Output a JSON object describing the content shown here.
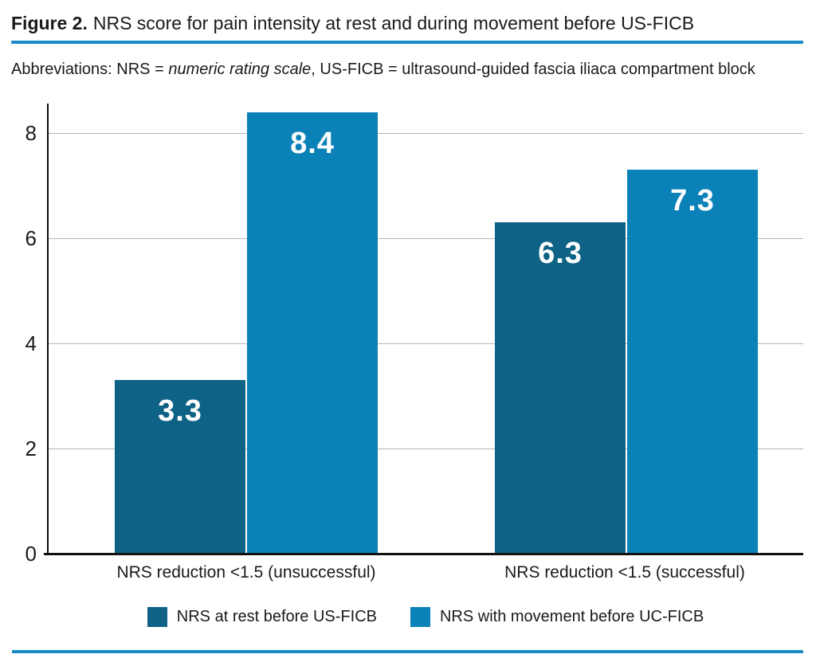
{
  "header": {
    "figure_label": "Figure 2.",
    "title_text": "NRS score for pain intensity at rest and during movement before US-FICB"
  },
  "abbreviations": {
    "prefix": "Abbreviations: NRS = ",
    "italic_term": "numeric rating scale",
    "suffix": ", US-FICB = ultrasound-guided fascia iliaca compartment block"
  },
  "chart_data": {
    "type": "bar",
    "title": "NRS score for pain intensity at rest and during movement before US-FICB",
    "categories": [
      "NRS reduction <1.5 (unsuccessful)",
      "NRS reduction <1.5 (successful)"
    ],
    "series": [
      {
        "name": "NRS at rest before US-FICB",
        "color": "#0e6285",
        "values": [
          3.3,
          6.3
        ]
      },
      {
        "name": "NRS with movement before UC-FICB",
        "color": "#0a82b8",
        "values": [
          8.4,
          7.3
        ]
      }
    ],
    "value_labels": [
      [
        "3.3",
        "6.3"
      ],
      [
        "8.4",
        "7.3"
      ]
    ],
    "xlabel": "",
    "ylabel": "",
    "yticks": [
      0,
      2,
      4,
      6,
      8
    ],
    "ylim": [
      0,
      8.8
    ],
    "grid": true,
    "legend_position": "bottom"
  },
  "colors": {
    "divider_blue": "#1789c4",
    "gridline": "#b3b3b3",
    "axis": "#111111",
    "text": "#1a1a1a",
    "bar_dark": "#0e6285",
    "bar_light": "#0a82b8",
    "value_label": "#ffffff",
    "background": "#ffffff"
  }
}
